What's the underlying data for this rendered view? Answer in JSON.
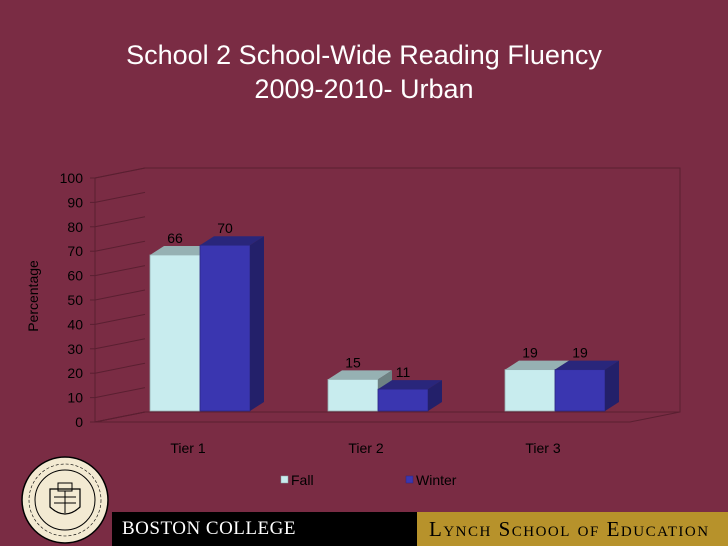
{
  "title": {
    "line1": "School 2 School-Wide Reading Fluency",
    "line2": "2009-2010- Urban"
  },
  "footer": {
    "left_text": "BOSTON COLLEGE",
    "right_text": "Lynch School of Education"
  },
  "seal": {
    "text": "SIGILLUM COLLEGII BOSTONIENSIS MDCCCLXIII"
  },
  "colors": {
    "background": "#7a2c44",
    "fall": "#c8ecee",
    "winter": "#3a36b0",
    "footer_gold": "#b7922b"
  },
  "chart_data": {
    "type": "bar",
    "title": "",
    "xlabel": "",
    "ylabel": "Percentage",
    "ylim": [
      0,
      100
    ],
    "yticks": [
      "0",
      "10",
      "20",
      "30",
      "40",
      "50",
      "60",
      "70",
      "80",
      "90",
      "100"
    ],
    "categories": [
      "Tier 1",
      "Tier 2",
      "Tier 3"
    ],
    "series": [
      {
        "name": "Fall",
        "values": [
          66,
          15,
          19
        ]
      },
      {
        "name": "Winter",
        "values": [
          70,
          11,
          19
        ]
      }
    ],
    "legend": "bottom",
    "grid": false,
    "style": "3d"
  }
}
